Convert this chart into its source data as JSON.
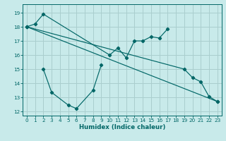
{
  "background_color": "#c8eaea",
  "grid_color": "#aacece",
  "line_color": "#006666",
  "xlabel": "Humidex (Indice chaleur)",
  "xlim": [
    -0.5,
    23.5
  ],
  "ylim": [
    11.7,
    19.6
  ],
  "yticks": [
    12,
    13,
    14,
    15,
    16,
    17,
    18,
    19
  ],
  "xticks": [
    0,
    1,
    2,
    3,
    4,
    5,
    6,
    7,
    8,
    9,
    10,
    11,
    12,
    13,
    14,
    15,
    16,
    17,
    18,
    19,
    20,
    21,
    22,
    23
  ],
  "line_upper_wavy": {
    "x": [
      0,
      1,
      2,
      10,
      11,
      12,
      13,
      14,
      15,
      16,
      17
    ],
    "y": [
      18.0,
      18.2,
      18.9,
      16.0,
      16.5,
      15.8,
      17.0,
      17.0,
      17.3,
      17.2,
      17.85
    ]
  },
  "line_bottom_wavy": {
    "x": [
      2,
      3,
      5,
      6,
      8,
      9
    ],
    "y": [
      15.0,
      13.35,
      12.45,
      12.2,
      13.5,
      15.3
    ]
  },
  "line_upper_diag": {
    "x": [
      0,
      23
    ],
    "y": [
      18.0,
      12.7
    ]
  },
  "line_lower_diag": {
    "x": [
      0,
      19,
      20,
      21,
      22,
      23
    ],
    "y": [
      18.0,
      15.0,
      14.4,
      14.1,
      13.05,
      12.7
    ]
  }
}
